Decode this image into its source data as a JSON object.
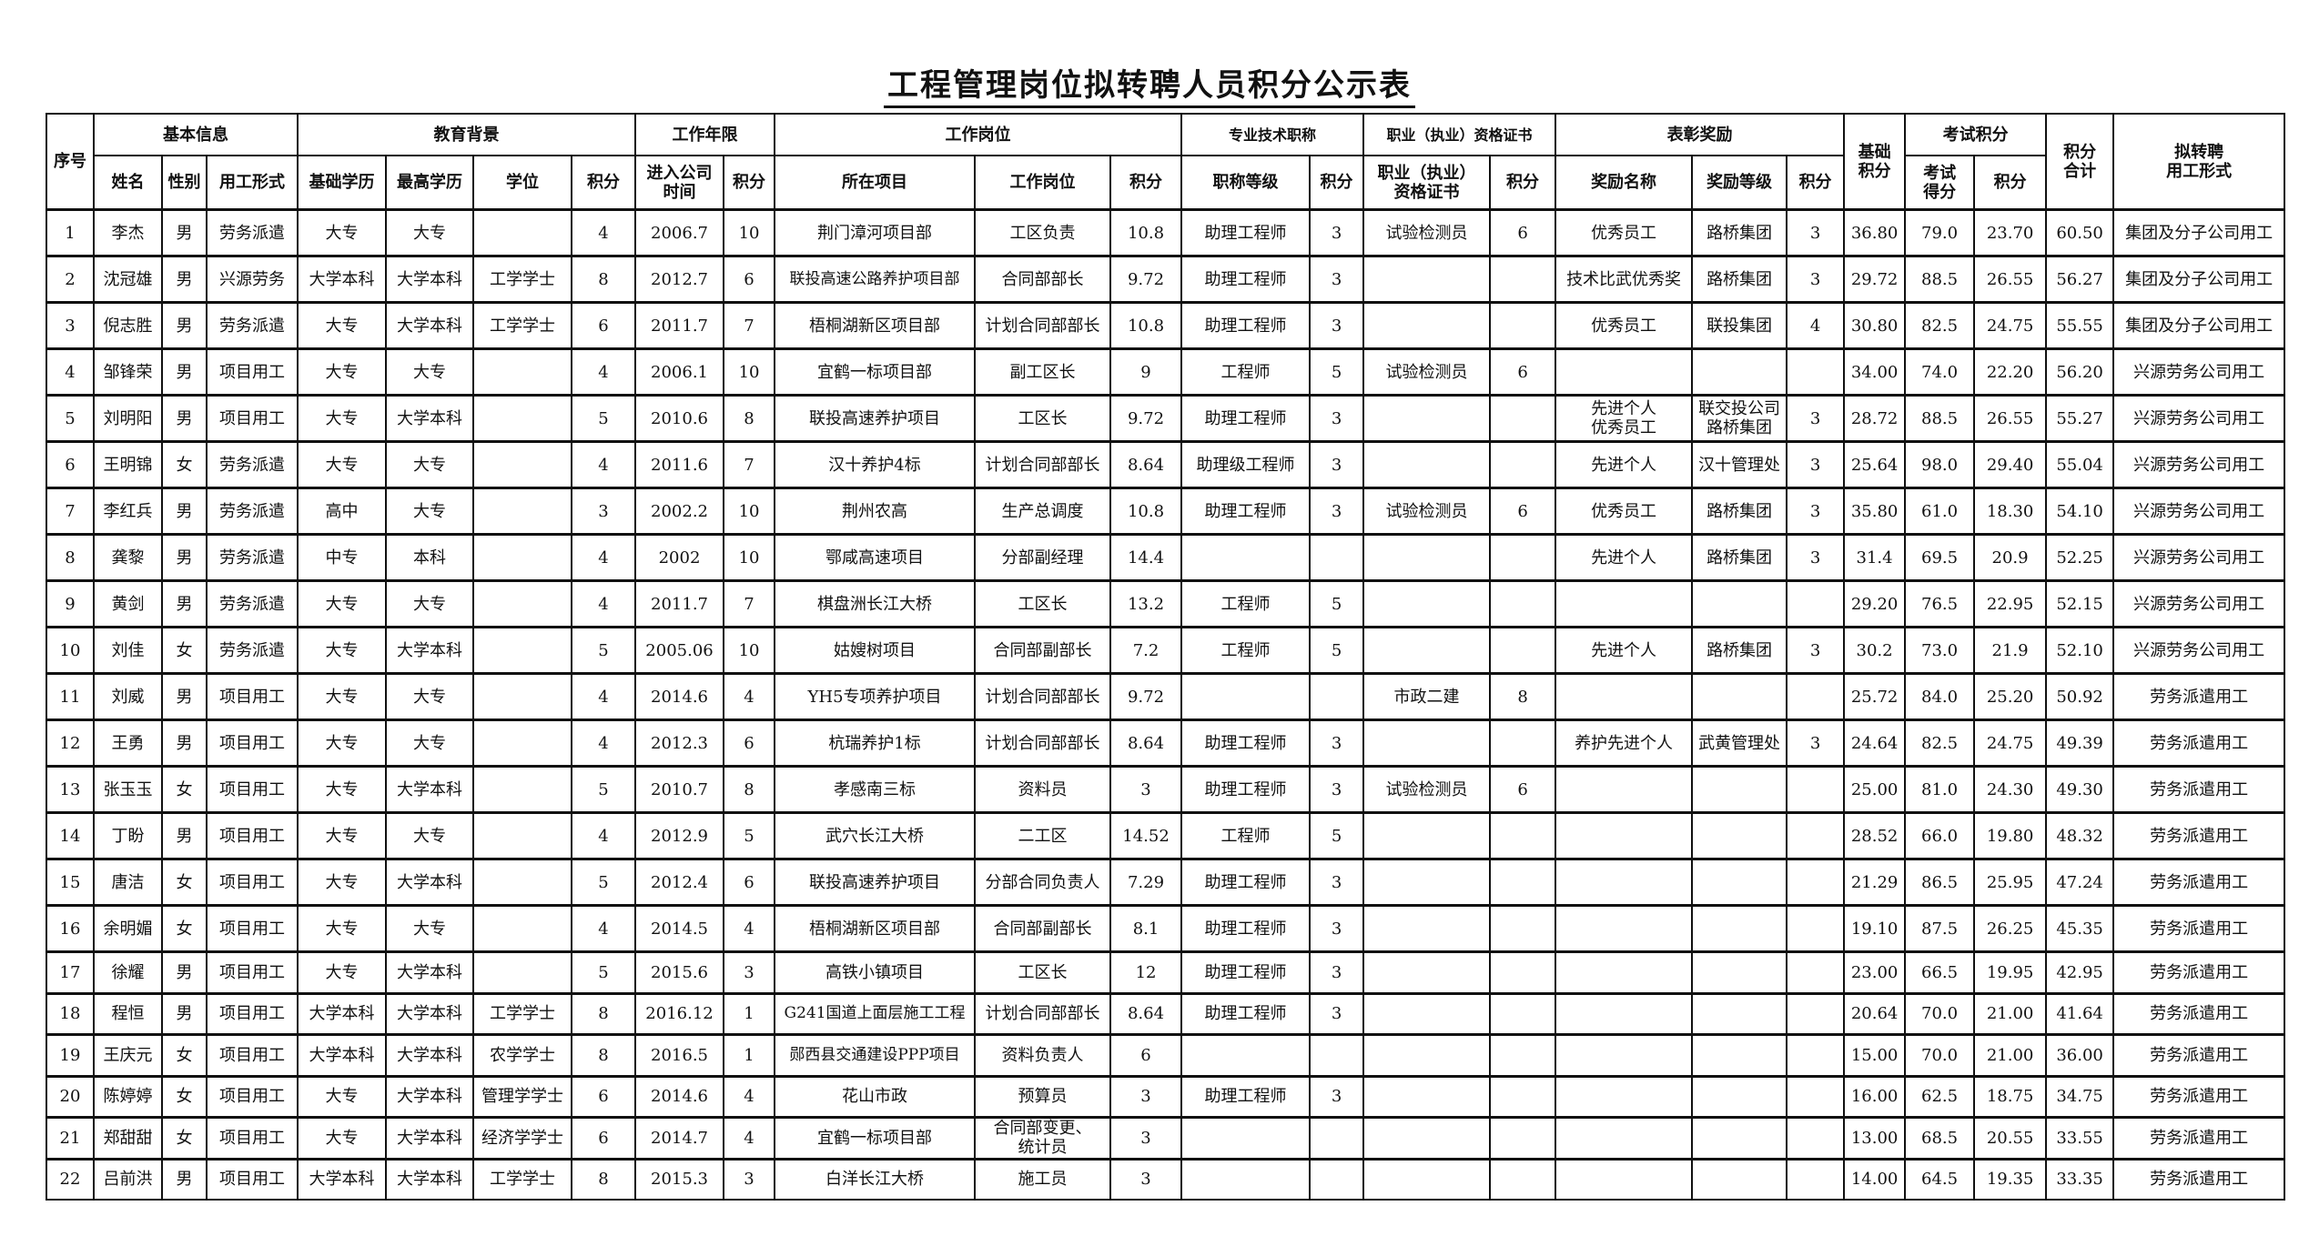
{
  "title": "工程管理岗位拟转聘人员积分公示表",
  "group_headers": {
    "seq": "序号",
    "basic": "基本信息",
    "education": "教育背景",
    "years": "工作年限",
    "position": "工作岗位",
    "title_cert": "专业技术职称",
    "qualification": "职业（执业）资格证书",
    "awards": "表彰奖励",
    "base_score": "基础\n积分",
    "exam": "考试积分",
    "total": "积分\n合计",
    "target_form": "拟转聘\n用工形式"
  },
  "sub_headers": [
    "姓名",
    "性别",
    "用工形式",
    "基础学历",
    "最高学历",
    "学位",
    "积分",
    "进入公司\n时间",
    "积分",
    "所在项目",
    "工作岗位",
    "积分",
    "职称等级",
    "积分",
    "职业（执业）\n资格证书",
    "积分",
    "奖励名称",
    "奖励等级",
    "积分",
    "考试\n得分",
    "积分"
  ],
  "rows": [
    [
      "1",
      "李杰",
      "男",
      "劳务派遣",
      "大专",
      "大专",
      "",
      "4",
      "2006.7",
      "10",
      "荆门漳河项目部",
      "工区负责",
      "10.8",
      "助理工程师",
      "3",
      "试验检测员",
      "6",
      "优秀员工",
      "路桥集团",
      "3",
      "36.80",
      "79.0",
      "23.70",
      "60.50",
      "集团及分子公司用工"
    ],
    [
      "2",
      "沈冠雄",
      "男",
      "兴源劳务",
      "大学本科",
      "大学本科",
      "工学学士",
      "8",
      "2012.7",
      "6",
      "联投高速公路养护项目部",
      "合同部部长",
      "9.72",
      "助理工程师",
      "3",
      "",
      "",
      "技术比武优秀奖",
      "路桥集团",
      "3",
      "29.72",
      "88.5",
      "26.55",
      "56.27",
      "集团及分子公司用工"
    ],
    [
      "3",
      "倪志胜",
      "男",
      "劳务派遣",
      "大专",
      "大学本科",
      "工学学士",
      "6",
      "2011.7",
      "7",
      "梧桐湖新区项目部",
      "计划合同部部长",
      "10.8",
      "助理工程师",
      "3",
      "",
      "",
      "优秀员工",
      "联投集团",
      "4",
      "30.80",
      "82.5",
      "24.75",
      "55.55",
      "集团及分子公司用工"
    ],
    [
      "4",
      "邹锋荣",
      "男",
      "项目用工",
      "大专",
      "大专",
      "",
      "4",
      "2006.1",
      "10",
      "宜鹤一标项目部",
      "副工区长",
      "9",
      "工程师",
      "5",
      "试验检测员",
      "6",
      "",
      "",
      "",
      "34.00",
      "74.0",
      "22.20",
      "56.20",
      "兴源劳务公司用工"
    ],
    [
      "5",
      "刘明阳",
      "男",
      "项目用工",
      "大专",
      "大学本科",
      "",
      "5",
      "2010.6",
      "8",
      "联投高速养护项目",
      "工区长",
      "9.72",
      "助理工程师",
      "3",
      "",
      "",
      "先进个人\n优秀员工",
      "联交投公司\n路桥集团",
      "3",
      "28.72",
      "88.5",
      "26.55",
      "55.27",
      "兴源劳务公司用工"
    ],
    [
      "6",
      "王明锦",
      "女",
      "劳务派遣",
      "大专",
      "大专",
      "",
      "4",
      "2011.6",
      "7",
      "汉十养护4标",
      "计划合同部部长",
      "8.64",
      "助理级工程师",
      "3",
      "",
      "",
      "先进个人",
      "汉十管理处",
      "3",
      "25.64",
      "98.0",
      "29.40",
      "55.04",
      "兴源劳务公司用工"
    ],
    [
      "7",
      "李红兵",
      "男",
      "劳务派遣",
      "高中",
      "大专",
      "",
      "3",
      "2002.2",
      "10",
      "荆州农高",
      "生产总调度",
      "10.8",
      "助理工程师",
      "3",
      "试验检测员",
      "6",
      "优秀员工",
      "路桥集团",
      "3",
      "35.80",
      "61.0",
      "18.30",
      "54.10",
      "兴源劳务公司用工"
    ],
    [
      "8",
      "龚黎",
      "男",
      "劳务派遣",
      "中专",
      "本科",
      "",
      "4",
      "2002",
      "10",
      "鄂咸高速项目",
      "分部副经理",
      "14.4",
      "",
      "",
      "",
      "",
      "先进个人",
      "路桥集团",
      "3",
      "31.4",
      "69.5",
      "20.9",
      "52.25",
      "兴源劳务公司用工"
    ],
    [
      "9",
      "黄剑",
      "男",
      "劳务派遣",
      "大专",
      "大专",
      "",
      "4",
      "2011.7",
      "7",
      "棋盘洲长江大桥",
      "工区长",
      "13.2",
      "工程师",
      "5",
      "",
      "",
      "",
      "",
      "",
      "29.20",
      "76.5",
      "22.95",
      "52.15",
      "兴源劳务公司用工"
    ],
    [
      "10",
      "刘佳",
      "女",
      "劳务派遣",
      "大专",
      "大学本科",
      "",
      "5",
      "2005.06",
      "10",
      "姑嫂树项目",
      "合同部副部长",
      "7.2",
      "工程师",
      "5",
      "",
      "",
      "先进个人",
      "路桥集团",
      "3",
      "30.2",
      "73.0",
      "21.9",
      "52.10",
      "兴源劳务公司用工"
    ],
    [
      "11",
      "刘威",
      "男",
      "项目用工",
      "大专",
      "大专",
      "",
      "4",
      "2014.6",
      "4",
      "YH5专项养护项目",
      "计划合同部部长",
      "9.72",
      "",
      "",
      "市政二建",
      "8",
      "",
      "",
      "",
      "25.72",
      "84.0",
      "25.20",
      "50.92",
      "劳务派遣用工"
    ],
    [
      "12",
      "王勇",
      "男",
      "项目用工",
      "大专",
      "大专",
      "",
      "4",
      "2012.3",
      "6",
      "杭瑞养护1标",
      "计划合同部部长",
      "8.64",
      "助理工程师",
      "3",
      "",
      "",
      "养护先进个人",
      "武黄管理处",
      "3",
      "24.64",
      "82.5",
      "24.75",
      "49.39",
      "劳务派遣用工"
    ],
    [
      "13",
      "张玉玉",
      "女",
      "项目用工",
      "大专",
      "大学本科",
      "",
      "5",
      "2010.7",
      "8",
      "孝感南三标",
      "资料员",
      "3",
      "助理工程师",
      "3",
      "试验检测员",
      "6",
      "",
      "",
      "",
      "25.00",
      "81.0",
      "24.30",
      "49.30",
      "劳务派遣用工"
    ],
    [
      "14",
      "丁盼",
      "男",
      "项目用工",
      "大专",
      "大专",
      "",
      "4",
      "2012.9",
      "5",
      "武穴长江大桥",
      "二工区",
      "14.52",
      "工程师",
      "5",
      "",
      "",
      "",
      "",
      "",
      "28.52",
      "66.0",
      "19.80",
      "48.32",
      "劳务派遣用工"
    ],
    [
      "15",
      "唐洁",
      "女",
      "项目用工",
      "大专",
      "大学本科",
      "",
      "5",
      "2012.4",
      "6",
      "联投高速养护项目",
      "分部合同负责人",
      "7.29",
      "助理工程师",
      "3",
      "",
      "",
      "",
      "",
      "",
      "21.29",
      "86.5",
      "25.95",
      "47.24",
      "劳务派遣用工"
    ],
    [
      "16",
      "余明媚",
      "女",
      "项目用工",
      "大专",
      "大专",
      "",
      "4",
      "2014.5",
      "4",
      "梧桐湖新区项目部",
      "合同部副部长",
      "8.1",
      "助理工程师",
      "3",
      "",
      "",
      "",
      "",
      "",
      "19.10",
      "87.5",
      "26.25",
      "45.35",
      "劳务派遣用工"
    ],
    [
      "17",
      "徐耀",
      "男",
      "项目用工",
      "大专",
      "大学本科",
      "",
      "5",
      "2015.6",
      "3",
      "高铁小镇项目",
      "工区长",
      "12",
      "助理工程师",
      "3",
      "",
      "",
      "",
      "",
      "",
      "23.00",
      "66.5",
      "19.95",
      "42.95",
      "劳务派遣用工"
    ],
    [
      "18",
      "程恒",
      "男",
      "项目用工",
      "大学本科",
      "大学本科",
      "工学学士",
      "8",
      "2016.12",
      "1",
      "G241国道上面层施工工程",
      "计划合同部部长",
      "8.64",
      "助理工程师",
      "3",
      "",
      "",
      "",
      "",
      "",
      "20.64",
      "70.0",
      "21.00",
      "41.64",
      "劳务派遣用工"
    ],
    [
      "19",
      "王庆元",
      "女",
      "项目用工",
      "大学本科",
      "大学本科",
      "农学学士",
      "8",
      "2016.5",
      "1",
      "郧西县交通建设PPP项目",
      "资料负责人",
      "6",
      "",
      "",
      "",
      "",
      "",
      "",
      "",
      "15.00",
      "70.0",
      "21.00",
      "36.00",
      "劳务派遣用工"
    ],
    [
      "20",
      "陈婷婷",
      "女",
      "项目用工",
      "大专",
      "大学本科",
      "管理学学士",
      "6",
      "2014.6",
      "4",
      "花山市政",
      "预算员",
      "3",
      "助理工程师",
      "3",
      "",
      "",
      "",
      "",
      "",
      "16.00",
      "62.5",
      "18.75",
      "34.75",
      "劳务派遣用工"
    ],
    [
      "21",
      "郑甜甜",
      "女",
      "项目用工",
      "大专",
      "大学本科",
      "经济学学士",
      "6",
      "2014.7",
      "4",
      "宜鹤一标项目部",
      "合同部变更、\n统计员",
      "3",
      "",
      "",
      "",
      "",
      "",
      "",
      "",
      "13.00",
      "68.5",
      "20.55",
      "33.55",
      "劳务派遣用工"
    ],
    [
      "22",
      "吕前洪",
      "男",
      "项目用工",
      "大学本科",
      "大学本科",
      "工学学士",
      "8",
      "2015.3",
      "3",
      "白洋长江大桥",
      "施工员",
      "3",
      "",
      "",
      "",
      "",
      "",
      "",
      "",
      "14.00",
      "64.5",
      "19.35",
      "33.35",
      "劳务派遣用工"
    ]
  ]
}
